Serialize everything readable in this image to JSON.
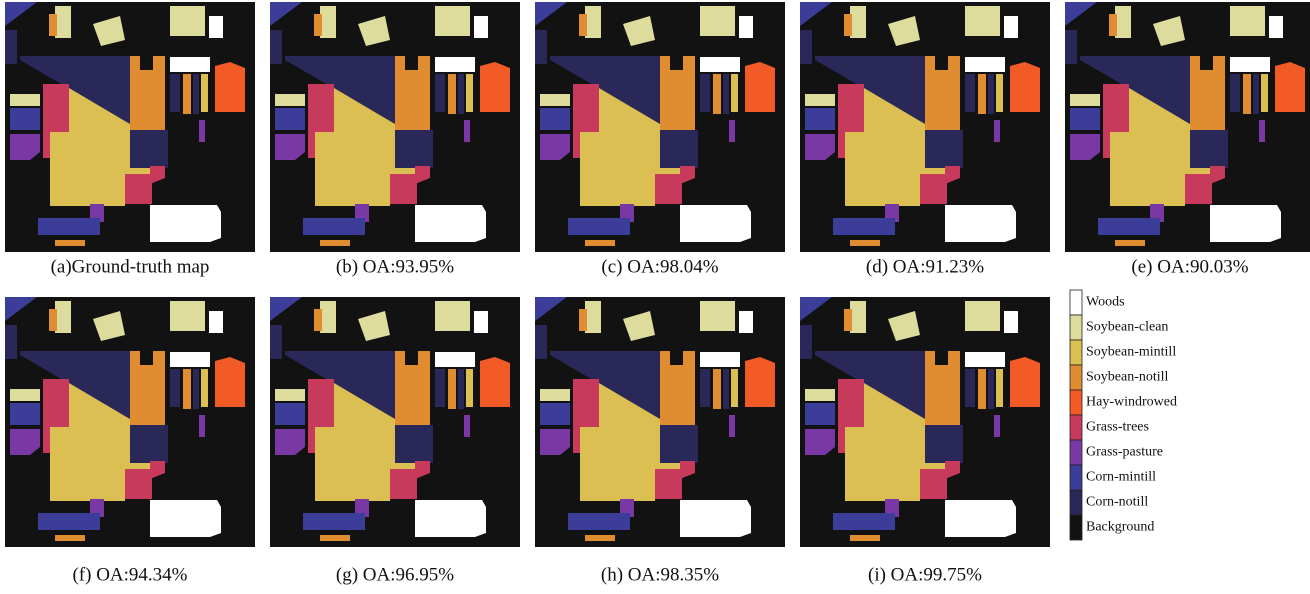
{
  "figure": {
    "panels": [
      {
        "caption": "(a)Ground-truth map"
      },
      {
        "caption": "(b) OA:93.95%"
      },
      {
        "caption": "(c) OA:98.04%"
      },
      {
        "caption": "(d) OA:91.23%"
      },
      {
        "caption": "(e) OA:90.03%"
      },
      {
        "caption": "(f) OA:94.34%"
      },
      {
        "caption": "(g) OA:96.95%"
      },
      {
        "caption": "(h) OA:98.35%"
      },
      {
        "caption": "(i) OA:99.75%"
      }
    ],
    "legend": [
      {
        "label": "Woods",
        "color": "#ffffff"
      },
      {
        "label": "Soybean-clean",
        "color": "#dedc9c"
      },
      {
        "label": "Soybean-mintill",
        "color": "#dcbf52"
      },
      {
        "label": "Soybean-notill",
        "color": "#e08c30"
      },
      {
        "label": "Hay-windrowed",
        "color": "#f25a26"
      },
      {
        "label": "Grass-trees",
        "color": "#c83a5c"
      },
      {
        "label": "Grass-pasture",
        "color": "#7a38a4"
      },
      {
        "label": "Corn-mintill",
        "color": "#3c3d98"
      },
      {
        "label": "Corn-notill",
        "color": "#2a2858"
      },
      {
        "label": "Background",
        "color": "#121212"
      }
    ]
  }
}
